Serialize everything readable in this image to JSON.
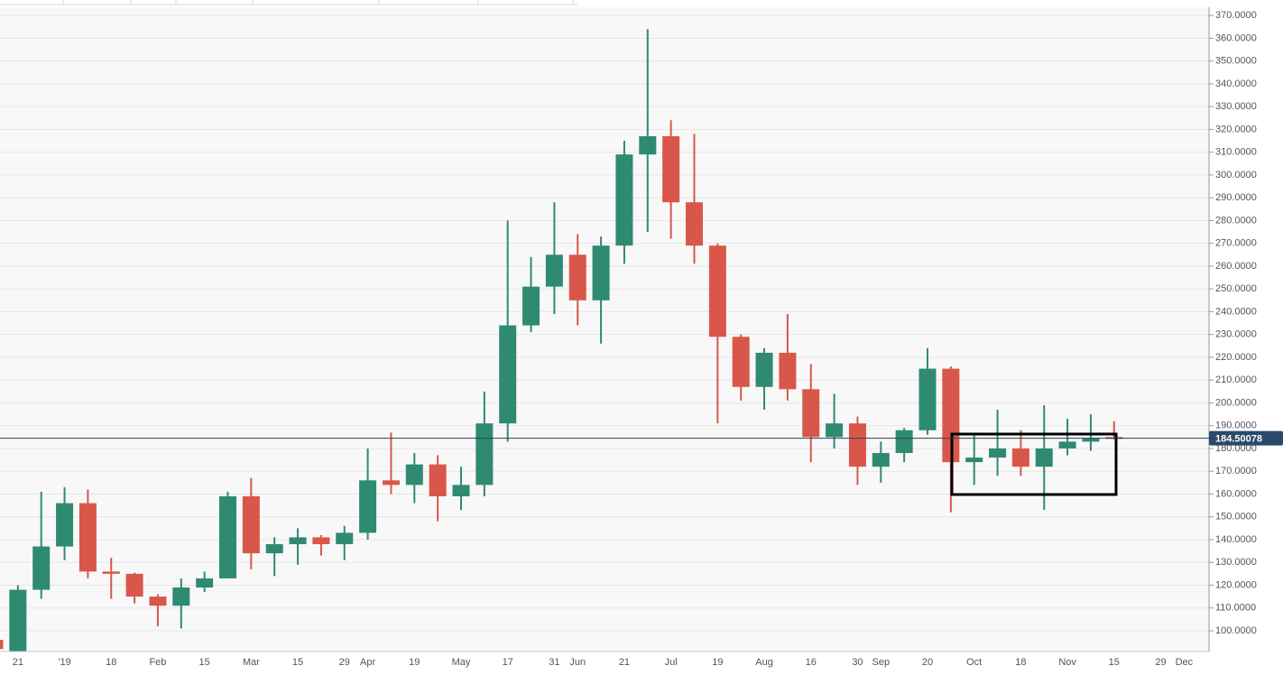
{
  "chart_data": {
    "type": "candlestick",
    "categories": [
      null,
      "21",
      null,
      "'19",
      null,
      "18",
      null,
      "Feb",
      null,
      "15",
      null,
      "Mar",
      null,
      "15",
      null,
      "29",
      "Apr",
      null,
      "19",
      null,
      "May",
      null,
      "17",
      null,
      "31",
      "Jun",
      null,
      "21",
      null,
      "Jul",
      null,
      "19",
      null,
      "Aug",
      null,
      "16",
      null,
      "30",
      "Sep",
      null,
      "20",
      null,
      "Oct",
      null,
      "18",
      null,
      "Nov",
      null,
      "15",
      null,
      "29",
      "Dec"
    ],
    "open": [
      96,
      88,
      118,
      137,
      156,
      126,
      125,
      115,
      111,
      119,
      123,
      159,
      134,
      138,
      141,
      138,
      143,
      166,
      164,
      173,
      159,
      164,
      191,
      234,
      251,
      265,
      245,
      269,
      309,
      317,
      288,
      269,
      229,
      207,
      222,
      206,
      185,
      191,
      172,
      178,
      188,
      215,
      174,
      176,
      180,
      172,
      180,
      183,
      185,
      null,
      null,
      null
    ],
    "high": [
      96,
      120,
      161,
      163,
      162,
      132,
      125.5,
      116,
      123,
      126,
      161,
      167,
      141,
      145,
      142,
      146,
      180,
      187,
      178,
      177,
      172,
      205,
      280,
      264,
      288,
      274,
      273,
      315,
      364,
      324,
      318,
      270,
      230,
      224,
      239,
      217,
      204,
      194,
      183,
      189,
      224,
      216,
      186,
      197,
      188,
      199,
      193,
      195,
      192,
      null,
      null,
      null
    ],
    "low": [
      91,
      86,
      114,
      131,
      123,
      114,
      112,
      102,
      101,
      117,
      123,
      127,
      124,
      129,
      133,
      131,
      140,
      160,
      156,
      148,
      153,
      159,
      183,
      231,
      239,
      234,
      226,
      261,
      275,
      272,
      261,
      191,
      201,
      197,
      201,
      174,
      180,
      164,
      165,
      174,
      186,
      152,
      164,
      168,
      168,
      153,
      177,
      179,
      184,
      null,
      null,
      null
    ],
    "close": [
      92,
      118,
      137,
      156,
      126,
      125,
      115,
      111,
      119,
      123,
      159,
      134,
      138,
      141,
      138,
      143,
      166,
      164,
      173,
      159,
      164,
      191,
      234,
      251,
      265,
      245,
      269,
      309,
      317,
      288,
      269,
      229,
      207,
      222,
      206,
      185,
      191,
      172,
      178,
      188,
      215,
      174,
      176,
      180,
      172,
      180,
      183,
      184.5,
      184.5,
      null,
      null,
      null
    ],
    "up_color": "#2f8a72",
    "down_color": "#d9574a",
    "last_price": 184.50078,
    "ylim": [
      90.9,
      373.6
    ],
    "yticks": [
      {
        "value": 100,
        "label": "100.0000"
      },
      {
        "value": 110,
        "label": "110.0000"
      },
      {
        "value": 120,
        "label": "120.0000"
      },
      {
        "value": 130,
        "label": "130.0000"
      },
      {
        "value": 140,
        "label": "140.0000"
      },
      {
        "value": 150,
        "label": "150.0000"
      },
      {
        "value": 160,
        "label": "160.0000"
      },
      {
        "value": 170,
        "label": "170.0000"
      },
      {
        "value": 180,
        "label": "180.0000"
      },
      {
        "value": 190,
        "label": "190.0000"
      },
      {
        "value": 200,
        "label": "200.0000"
      },
      {
        "value": 210,
        "label": "210.0000"
      },
      {
        "value": 220,
        "label": "220.0000"
      },
      {
        "value": 230,
        "label": "230.0000"
      },
      {
        "value": 240,
        "label": "240.0000"
      },
      {
        "value": 250,
        "label": "250.0000"
      },
      {
        "value": 260,
        "label": "260.0000"
      },
      {
        "value": 270,
        "label": "270.0000"
      },
      {
        "value": 280,
        "label": "280.0000"
      },
      {
        "value": 290,
        "label": "290.0000"
      },
      {
        "value": 300,
        "label": "300.0000"
      },
      {
        "value": 310,
        "label": "310.0000"
      },
      {
        "value": 320,
        "label": "320.0000"
      },
      {
        "value": 330,
        "label": "330.0000"
      },
      {
        "value": 340,
        "label": "340.0000"
      },
      {
        "value": 350,
        "label": "350.0000"
      },
      {
        "value": 360,
        "label": "360.0000"
      },
      {
        "value": 370,
        "label": "370.0000"
      }
    ],
    "grid": true
  }
}
